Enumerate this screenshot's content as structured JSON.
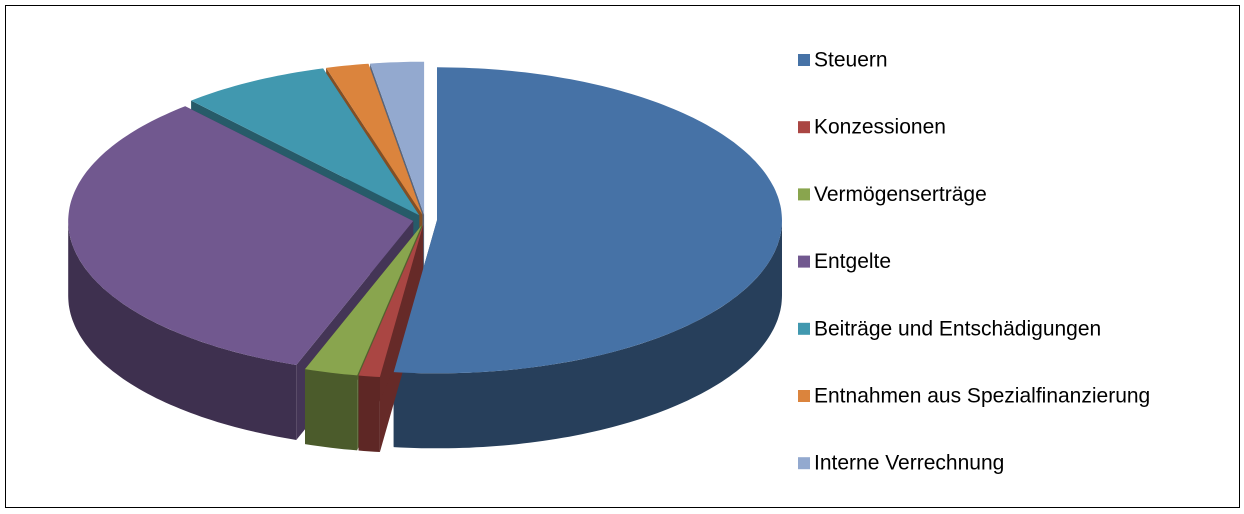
{
  "chart_data": {
    "type": "pie3d",
    "categories": [
      "Steuern",
      "Konzessionen",
      "Vermögenserträge",
      "Entgelte",
      "Beiträge und Entschädigungen",
      "Entnahmen aus Spezialfinanzierung",
      "Interne Verrechnung"
    ],
    "values": [
      52,
      1,
      2.5,
      33,
      7,
      2,
      2.5
    ],
    "colors": [
      "#4672a6",
      "#aa4643",
      "#89a54e",
      "#71588f",
      "#4198af",
      "#db843d",
      "#93a9cf"
    ],
    "legend": "right"
  }
}
